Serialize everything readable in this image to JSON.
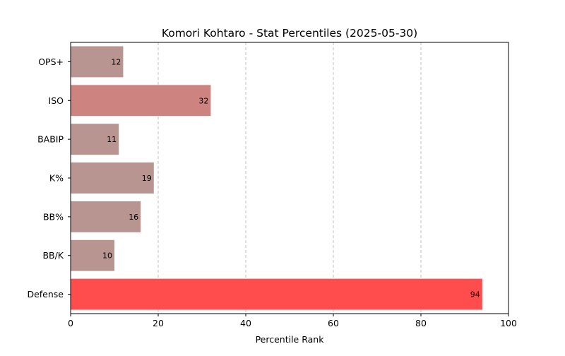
{
  "chart_data": {
    "type": "bar",
    "orientation": "horizontal",
    "title": "Komori Kohtaro - Stat Percentiles (2025-05-30)",
    "xlabel": "Percentile Rank",
    "ylabel": "",
    "xlim": [
      0,
      100
    ],
    "xticks": [
      "0",
      "20",
      "40",
      "60",
      "80",
      "100"
    ],
    "grid": "x-dashed",
    "categories": [
      "OPS+",
      "ISO",
      "BABIP",
      "K%",
      "BB%",
      "BB/K",
      "Defense"
    ],
    "values": [
      12,
      32,
      11,
      19,
      16,
      10,
      94
    ],
    "bar_colors": [
      "#b99592",
      "#cd837f",
      "#b99592",
      "#b99592",
      "#b99592",
      "#b99592",
      "#ff4c4c"
    ]
  }
}
